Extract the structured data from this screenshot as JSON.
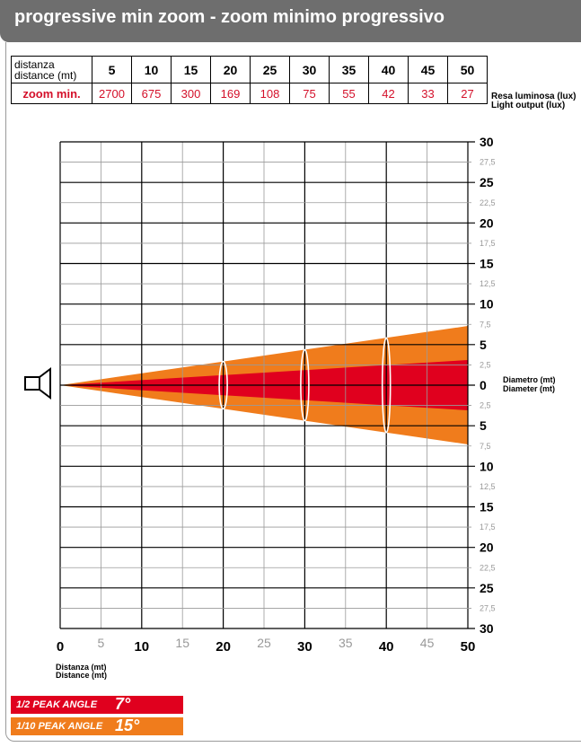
{
  "header": {
    "title": "progressive min zoom - zoom minimo progressivo"
  },
  "lux_table": {
    "distance_label_line1": "distanza",
    "distance_label_line2": "distance (mt)",
    "distances": [
      "5",
      "10",
      "15",
      "20",
      "25",
      "30",
      "35",
      "40",
      "45",
      "50"
    ],
    "row_label": "zoom min.",
    "lux_values": [
      "2700",
      "675",
      "300",
      "169",
      "108",
      "75",
      "55",
      "42",
      "33",
      "27"
    ],
    "caption_line1": "Resa luminosa (lux)",
    "caption_line2": "Light output (lux)"
  },
  "colors": {
    "half_peak": "#e0001e",
    "tenth_peak": "#f07c1c",
    "header_bg": "#6e6e6e",
    "lux_text": "#d4102a",
    "minor_label": "#999999"
  },
  "chart_data": {
    "type": "area",
    "title": "",
    "xlabel_line1": "Distanza (mt)",
    "xlabel_line2": "Distance (mt)",
    "ylabel_line1": "Diametro (mt)",
    "ylabel_line2": "Diameter (mt)",
    "xlim": [
      0,
      50
    ],
    "ylim": [
      -30,
      30
    ],
    "x_ticks": [
      {
        "value": 0,
        "label": "0",
        "major": true
      },
      {
        "value": 5,
        "label": "5",
        "major": false
      },
      {
        "value": 10,
        "label": "10",
        "major": true
      },
      {
        "value": 15,
        "label": "15",
        "major": false
      },
      {
        "value": 20,
        "label": "20",
        "major": true
      },
      {
        "value": 25,
        "label": "25",
        "major": false
      },
      {
        "value": 30,
        "label": "30",
        "major": true
      },
      {
        "value": 35,
        "label": "35",
        "major": false
      },
      {
        "value": 40,
        "label": "40",
        "major": true
      },
      {
        "value": 45,
        "label": "45",
        "major": false
      },
      {
        "value": 50,
        "label": "50",
        "major": true
      }
    ],
    "y_ticks": [
      {
        "value": 30,
        "label": "30",
        "major": true
      },
      {
        "value": 27.5,
        "label": "27,5",
        "major": false
      },
      {
        "value": 25,
        "label": "25",
        "major": true
      },
      {
        "value": 22.5,
        "label": "22,5",
        "major": false
      },
      {
        "value": 20,
        "label": "20",
        "major": true
      },
      {
        "value": 17.5,
        "label": "17,5",
        "major": false
      },
      {
        "value": 15,
        "label": "15",
        "major": true
      },
      {
        "value": 12.5,
        "label": "12,5",
        "major": false
      },
      {
        "value": 10,
        "label": "10",
        "major": true
      },
      {
        "value": 7.5,
        "label": "7,5",
        "major": false
      },
      {
        "value": 5,
        "label": "5",
        "major": true
      },
      {
        "value": 2.5,
        "label": "2,5",
        "major": false
      },
      {
        "value": 0,
        "label": "0",
        "major": true
      },
      {
        "value": -2.5,
        "label": "2,5",
        "major": false
      },
      {
        "value": -5,
        "label": "5",
        "major": true
      },
      {
        "value": -7.5,
        "label": "7,5",
        "major": false
      },
      {
        "value": -10,
        "label": "10",
        "major": true
      },
      {
        "value": -12.5,
        "label": "12,5",
        "major": false
      },
      {
        "value": -15,
        "label": "15",
        "major": true
      },
      {
        "value": -17.5,
        "label": "17,5",
        "major": false
      },
      {
        "value": -20,
        "label": "20",
        "major": true
      },
      {
        "value": -22.5,
        "label": "22,5",
        "major": false
      },
      {
        "value": -25,
        "label": "25",
        "major": true
      },
      {
        "value": -27.5,
        "label": "27,5",
        "major": false
      },
      {
        "value": -30,
        "label": "30",
        "major": true
      }
    ],
    "series": [
      {
        "name": "1/10 PEAK ANGLE",
        "angle_label": "15°",
        "angle_deg": 15,
        "color": "#f07c1c",
        "half_width_at_50": 7.3
      },
      {
        "name": "1/2 PEAK ANGLE",
        "angle_label": "7°",
        "angle_deg": 7,
        "color": "#e0001e",
        "half_width_at_50": 3.1
      }
    ],
    "beam_sections_x": [
      20,
      30,
      40
    ],
    "grid": true
  }
}
